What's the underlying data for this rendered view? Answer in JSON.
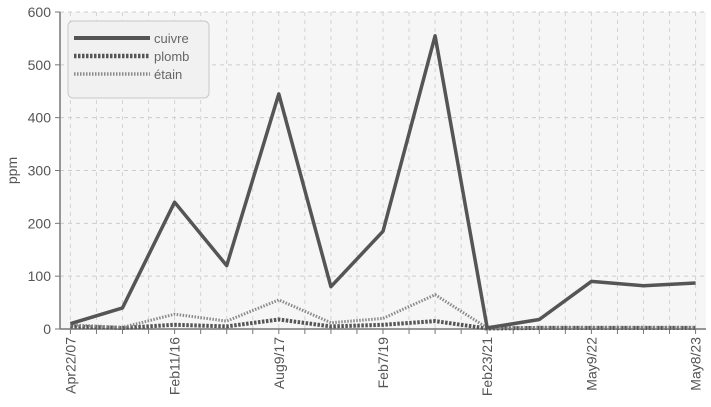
{
  "chart_data": {
    "type": "line",
    "title": "",
    "xlabel": "",
    "ylabel": "ppm",
    "ylim": [
      0,
      600
    ],
    "yticks": [
      0,
      100,
      200,
      300,
      400,
      500,
      600
    ],
    "categories": [
      "Apr22/07",
      "",
      "Feb11/16",
      "",
      "Aug9/17",
      "",
      "Feb7/19",
      "",
      "Feb23/21",
      "",
      "May9/22",
      "",
      "May8/23"
    ],
    "x": [
      0,
      1,
      2,
      3,
      4,
      5,
      6,
      7,
      8,
      9,
      10,
      11,
      12,
      13,
      14,
      15,
      16,
      17,
      18,
      19,
      20,
      21,
      22,
      23,
      24,
      25,
      26
    ],
    "x_tick_positions": [
      0,
      4,
      8,
      12,
      16,
      20,
      24
    ],
    "xlim": [
      -0.4,
      24.4
    ],
    "series": [
      {
        "name": "cuivre",
        "color": "#555555",
        "style": "solid",
        "x": [
          0,
          2,
          4,
          6,
          8,
          10,
          12,
          14,
          16,
          18,
          20,
          22,
          24
        ],
        "values": [
          10,
          40,
          240,
          120,
          445,
          80,
          185,
          555,
          2,
          18,
          90,
          82,
          87
        ]
      },
      {
        "name": "plomb",
        "color": "#555555",
        "style": "dashed",
        "x": [
          0,
          2,
          4,
          6,
          8,
          10,
          12,
          14,
          16,
          18,
          20,
          22,
          24
        ],
        "values": [
          5,
          2,
          8,
          5,
          18,
          5,
          8,
          15,
          1,
          2,
          2,
          2,
          2
        ]
      },
      {
        "name": "étain",
        "color": "#8a8a8a",
        "style": "dotted",
        "x": [
          0,
          2,
          4,
          6,
          8,
          10,
          12,
          14,
          16,
          18,
          20,
          22,
          24
        ],
        "values": [
          8,
          3,
          28,
          15,
          55,
          12,
          20,
          65,
          2,
          3,
          3,
          3,
          3
        ]
      }
    ],
    "legend_position": "top-left",
    "grid": true
  }
}
